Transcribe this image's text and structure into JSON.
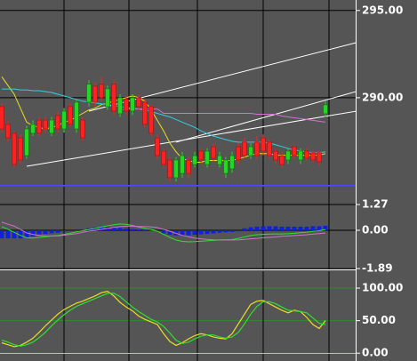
{
  "chart_data": [
    {
      "type": "candlestick",
      "up_color": "#22d822",
      "down_color": "#ff2020",
      "grid_color": "#000000",
      "open": [
        289.49,
        288.47,
        287.96,
        287.7,
        286.68,
        287.96,
        288.72,
        288.72,
        287.96,
        288.98,
        288.21,
        289.49,
        288.21,
        288.72,
        289.74,
        290.66,
        290.77,
        289.49,
        290.77,
        289.08,
        289.9,
        289.23,
        290.0,
        289.74,
        289.49,
        287.7,
        286.94,
        286.43,
        285.41,
        285.66,
        286.43,
        286.17,
        286.94,
        286.17,
        287.19,
        286.17,
        285.66,
        285.92,
        287.19,
        287.45,
        286.68,
        287.45,
        287.7,
        287.45,
        286.94,
        286.68,
        286.43,
        287.19,
        286.43,
        286.94,
        286.84,
        286.84,
        289.08
      ],
      "high": [
        289.7,
        288.7,
        288.1,
        287.9,
        288.4,
        288.7,
        288.9,
        288.9,
        288.9,
        289.2,
        289.4,
        289.7,
        289.9,
        288.9,
        291.0,
        290.9,
        291.2,
        290.7,
        291.0,
        290.2,
        290.1,
        290.2,
        290.2,
        289.9,
        289.6,
        287.9,
        287.1,
        286.6,
        286.6,
        286.9,
        286.6,
        286.9,
        287.1,
        287.1,
        287.4,
        286.9,
        286.6,
        286.9,
        287.4,
        287.7,
        287.4,
        287.8,
        287.9,
        287.6,
        287.1,
        286.9,
        287.1,
        287.3,
        287.1,
        287.1,
        287.0,
        287.0,
        289.8
      ],
      "low": [
        288.0,
        287.5,
        286.0,
        286.2,
        286.5,
        287.8,
        287.8,
        288.0,
        287.8,
        288.0,
        288.0,
        288.3,
        288.0,
        287.5,
        289.5,
        289.5,
        289.8,
        289.3,
        289.0,
        288.9,
        289.0,
        289.0,
        289.3,
        288.3,
        287.8,
        286.5,
        286.0,
        285.2,
        285.2,
        285.4,
        285.4,
        286.0,
        286.2,
        286.0,
        286.3,
        286.0,
        285.4,
        285.7,
        286.2,
        286.5,
        286.5,
        286.5,
        286.7,
        286.5,
        286.2,
        286.0,
        286.2,
        286.5,
        286.2,
        286.4,
        286.3,
        286.1,
        288.9
      ],
      "close": [
        288.21,
        287.7,
        286.17,
        286.43,
        288.21,
        288.47,
        287.96,
        288.21,
        288.72,
        288.21,
        289.23,
        288.47,
        289.74,
        287.7,
        290.77,
        289.74,
        290.0,
        290.51,
        289.23,
        290.0,
        289.23,
        290.0,
        289.49,
        288.47,
        287.96,
        286.68,
        286.17,
        285.41,
        286.43,
        286.68,
        285.66,
        286.68,
        286.43,
        286.94,
        286.53,
        286.68,
        286.43,
        286.68,
        286.43,
        286.68,
        287.19,
        286.68,
        286.94,
        286.68,
        286.43,
        286.17,
        286.94,
        286.68,
        286.94,
        286.53,
        286.43,
        286.33,
        289.59
      ],
      "overlays": [
        {
          "color": "#e8e020",
          "values": [
            291.2,
            290.7,
            290.2,
            289.4,
            288.6,
            288.4,
            288.3,
            288.2,
            288.3,
            288.4,
            288.6,
            288.7,
            288.9,
            289.1,
            289.3,
            289.4,
            289.6,
            289.7,
            289.8,
            289.9,
            290.0,
            290.1,
            290.0,
            289.8,
            289.3,
            288.7,
            288.1,
            287.4,
            286.9,
            286.5,
            286.4,
            286.3,
            286.3,
            286.4,
            286.4,
            286.4,
            286.4,
            286.4,
            286.5,
            286.6,
            286.7,
            286.8,
            286.8,
            286.8,
            286.7,
            286.7,
            286.7,
            286.7,
            286.7,
            286.7,
            286.7,
            286.7,
            286.8
          ]
        },
        {
          "color": "#30d0e0",
          "values": [
            290.5,
            290.5,
            290.5,
            290.45,
            290.45,
            290.4,
            290.4,
            290.35,
            290.3,
            290.2,
            290.1,
            290.0,
            289.9,
            289.8,
            289.75,
            289.7,
            289.65,
            289.6,
            289.55,
            289.5,
            289.45,
            289.4,
            289.35,
            289.3,
            289.2,
            289.1,
            289.0,
            288.9,
            288.75,
            288.6,
            288.45,
            288.3,
            288.1,
            287.95,
            287.8,
            287.7,
            287.6,
            287.5,
            287.45,
            287.45,
            287.45,
            287.45,
            287.45,
            287.4,
            287.3,
            287.2,
            287.1,
            287.0,
            286.95,
            286.9,
            286.85,
            286.85,
            286.9
          ]
        },
        {
          "color": "#d070d0",
          "values": [
            null,
            null,
            null,
            null,
            null,
            null,
            null,
            null,
            null,
            null,
            null,
            null,
            null,
            null,
            null,
            null,
            null,
            null,
            null,
            289.3,
            289.35,
            289.35,
            289.35,
            289.35,
            289.35,
            289.35,
            289.1,
            289.1,
            289.1,
            289.1,
            289.1,
            289.1,
            289.1,
            289.1,
            289.1,
            289.1,
            289.1,
            289.1,
            289.1,
            289.1,
            289.1,
            289.05,
            289.05,
            289.05,
            289.05,
            288.95,
            288.9,
            288.85,
            288.8,
            288.75,
            288.7,
            288.65,
            288.6
          ]
        }
      ],
      "trendlines": [
        {
          "color": "#ffffff",
          "x": [
            4,
            57
          ],
          "values": [
            286.07,
            289.23
          ]
        },
        {
          "color": "#ffffff",
          "x": [
            14,
            57
          ],
          "values": [
            289.23,
            293.16
          ]
        },
        {
          "color": "#ffffff",
          "x": [
            28,
            57
          ],
          "values": [
            287.45,
            290.36
          ]
        }
      ],
      "ylim": [
        285.0,
        295.6
      ],
      "yticks": [
        {
          "value": 290,
          "label": "290.00"
        },
        {
          "value": 295,
          "label": "295.00"
        }
      ]
    },
    {
      "type": "macd",
      "grid_color": "#000000",
      "histogram": {
        "color": "#1020e0",
        "values": [
          -0.4,
          -0.4,
          -0.4,
          -0.4,
          -0.35,
          -0.3,
          -0.2,
          -0.18,
          -0.15,
          -0.12,
          -0.05,
          -0.04,
          -0.03,
          -0.02,
          0.1,
          0.15,
          0.18,
          0.18,
          0.15,
          0.12,
          0.09,
          0.06,
          0.04,
          0.02,
          0,
          -0.05,
          -0.15,
          -0.22,
          -0.25,
          -0.25,
          -0.25,
          -0.22,
          -0.2,
          -0.18,
          -0.15,
          -0.12,
          -0.1,
          -0.08,
          -0.05,
          0.1,
          0.15,
          0.18,
          0.2,
          0.2,
          0.2,
          0.18,
          0.18,
          0.18,
          0.18,
          0.18,
          0.2,
          0.2,
          0.22
        ]
      },
      "series": [
        {
          "color": "#30e030",
          "values": [
            0.18,
            0.05,
            -0.1,
            -0.25,
            -0.37,
            -0.38,
            -0.35,
            -0.32,
            -0.28,
            -0.26,
            -0.2,
            -0.15,
            -0.08,
            -0.02,
            0.04,
            0.1,
            0.16,
            0.22,
            0.27,
            0.31,
            0.3,
            0.24,
            0.16,
            0.1,
            0.04,
            -0.05,
            -0.2,
            -0.35,
            -0.48,
            -0.55,
            -0.57,
            -0.56,
            -0.54,
            -0.52,
            -0.5,
            -0.48,
            -0.47,
            -0.46,
            -0.4,
            -0.33,
            -0.26,
            -0.22,
            -0.2,
            -0.19,
            -0.18,
            -0.18,
            -0.17,
            -0.15,
            -0.12,
            -0.09,
            -0.05,
            -0.02,
            0.04
          ]
        },
        {
          "color": "#d070d0",
          "values": [
            0.4,
            0.3,
            0.2,
            0.05,
            -0.13,
            -0.2,
            -0.25,
            -0.27,
            -0.28,
            -0.27,
            -0.24,
            -0.2,
            -0.16,
            -0.1,
            -0.04,
            0.0,
            0.05,
            0.1,
            0.14,
            0.18,
            0.2,
            0.2,
            0.19,
            0.18,
            0.17,
            0.13,
            0.05,
            -0.05,
            -0.15,
            -0.25,
            -0.32,
            -0.38,
            -0.42,
            -0.45,
            -0.47,
            -0.48,
            -0.48,
            -0.48,
            -0.47,
            -0.45,
            -0.42,
            -0.4,
            -0.37,
            -0.35,
            -0.33,
            -0.3,
            -0.28,
            -0.26,
            -0.24,
            -0.22,
            -0.19,
            -0.16,
            -0.13
          ]
        }
      ],
      "ylim": [
        -1.93,
        2.15
      ],
      "yticks": [
        {
          "value": -1.89,
          "label": "-1.89"
        },
        {
          "value": 0,
          "label": "0.00"
        },
        {
          "value": 1.27,
          "label": "1.27"
        }
      ]
    },
    {
      "type": "line",
      "grid_color": "#2e8a2e",
      "series": [
        {
          "color": "#e8e020",
          "values": [
            16,
            13,
            10,
            12,
            17,
            23,
            32,
            42,
            51,
            60,
            67,
            72,
            77,
            80,
            84,
            88,
            93,
            95,
            88,
            78,
            71,
            65,
            57,
            52,
            48,
            44,
            30,
            18,
            12,
            16,
            22,
            27,
            30,
            28,
            25,
            23,
            22,
            30,
            45,
            60,
            75,
            80,
            81,
            76,
            71,
            66,
            62,
            66,
            64,
            55,
            44,
            38,
            50
          ]
        },
        {
          "color": "#30e030",
          "values": [
            20,
            17,
            13,
            11,
            13,
            17,
            24,
            32,
            42,
            51,
            59,
            66,
            72,
            76,
            80,
            84,
            88,
            92,
            92,
            87,
            79,
            71,
            64,
            58,
            52,
            48,
            41,
            31,
            20,
            15,
            17,
            22,
            26,
            28,
            28,
            25,
            23,
            25,
            32,
            45,
            60,
            72,
            79,
            79,
            76,
            71,
            66,
            65,
            64,
            62,
            54,
            46,
            44
          ]
        }
      ],
      "ylim": [
        -12,
        126
      ],
      "yticks": [
        {
          "value": 0,
          "label": "0.00"
        },
        {
          "value": 50,
          "label": "50.00"
        },
        {
          "value": 100,
          "label": "100.00"
        }
      ]
    }
  ]
}
